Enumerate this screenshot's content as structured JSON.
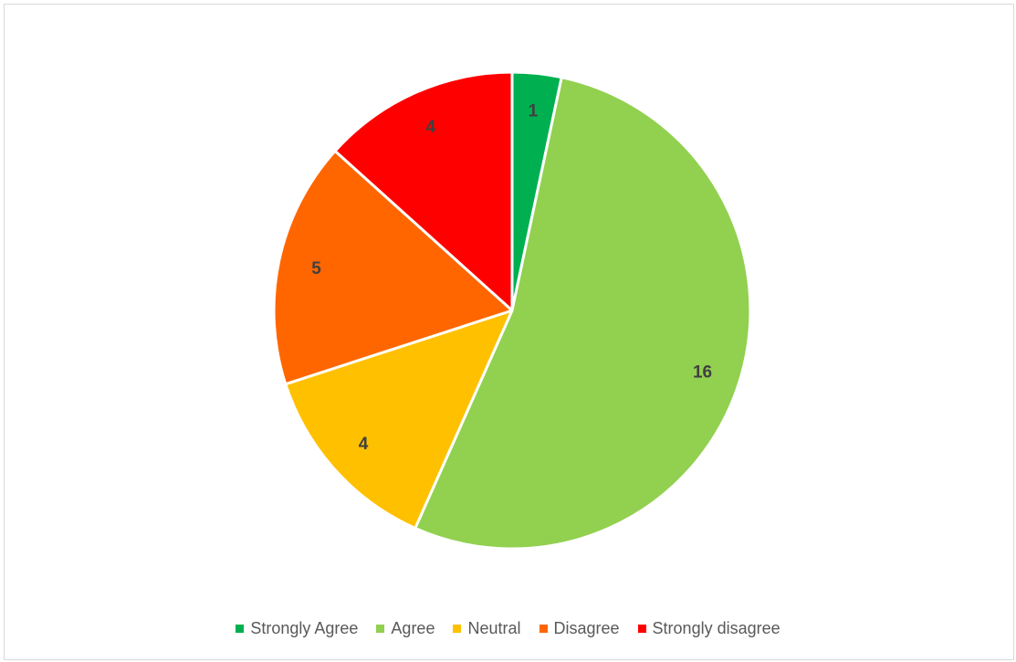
{
  "chart_data": {
    "type": "pie",
    "title": "",
    "categories": [
      "Strongly Agree",
      "Agree",
      "Neutral",
      "Disagree",
      "Strongly disagree"
    ],
    "values": [
      1,
      16,
      4,
      5,
      4
    ],
    "colors": [
      "#00b050",
      "#92d050",
      "#ffc000",
      "#ff6600",
      "#ff0000"
    ],
    "data_labels": [
      "1",
      "16",
      "4",
      "5",
      "4"
    ],
    "start_angle": "12 o'clock",
    "direction": "clockwise",
    "legend_position": "bottom"
  }
}
